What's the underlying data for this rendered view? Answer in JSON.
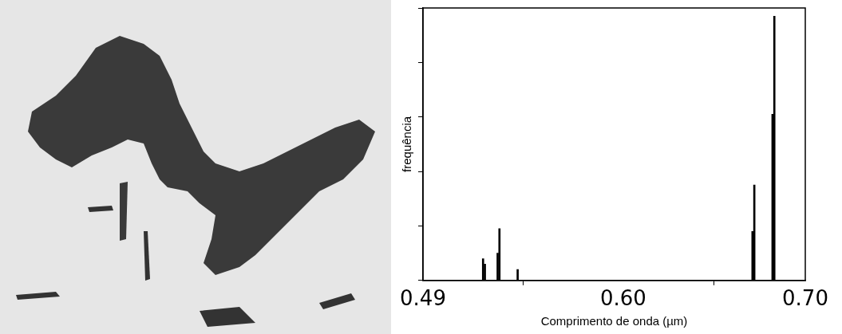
{
  "chart_data": {
    "type": "bar",
    "x_label": "Comprimento de onda (µm)",
    "y_label": "frequência",
    "x": [
      0.523,
      0.524,
      0.531,
      0.532,
      0.542,
      0.671,
      0.672,
      0.682,
      0.683
    ],
    "values": [
      8,
      6,
      10,
      19,
      4,
      18,
      35,
      61,
      97
    ],
    "color": "#000000",
    "xlim": [
      0.49,
      0.7
    ],
    "xticks": [
      0.49,
      {
        "value": 0.6,
        "label": "0.60"
      },
      {
        "value": 0.7,
        "label": "0.70"
      }
    ],
    "ylim": [
      0,
      100
    ],
    "yticks": [
      0,
      20,
      40,
      60,
      80,
      100
    ],
    "grid": false,
    "tick_labels": "x"
  }
}
